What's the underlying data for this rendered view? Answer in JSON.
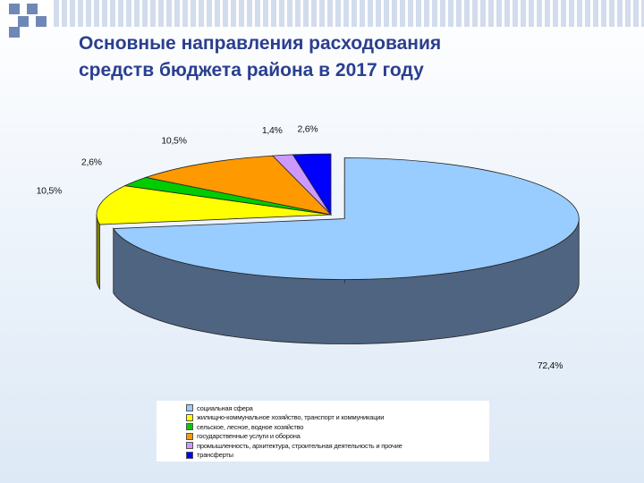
{
  "title": {
    "line1": "Основные направления расходования",
    "line2": "средств бюджета района в 2017 году"
  },
  "chart_data": {
    "type": "pie",
    "categories": [
      "социальная сфера",
      "жилищно-коммунальное хозяйство, транспорт и коммуникации",
      "сельское, лесное, водное хозяйство",
      "государственные услуги и оборона",
      "промышленность, архитектура, строительная деятельность и прочие",
      "трансферты"
    ],
    "values": [
      72.4,
      10.5,
      2.6,
      10.5,
      1.4,
      2.6
    ],
    "data_labels": [
      "72,4%",
      "10,5%",
      "2,6%",
      "10,5%",
      "1,4%",
      "2,6%"
    ],
    "colors": [
      "#99ccff",
      "#ffff00",
      "#00cc00",
      "#ff9900",
      "#cc99ff",
      "#0000ff"
    ],
    "side_colors": [
      "#4f6480",
      "#808000",
      "#006600",
      "#805000",
      "#66507f",
      "#000080"
    ],
    "exploded_slice": "социальная сфера",
    "legend_position": "bottom"
  }
}
